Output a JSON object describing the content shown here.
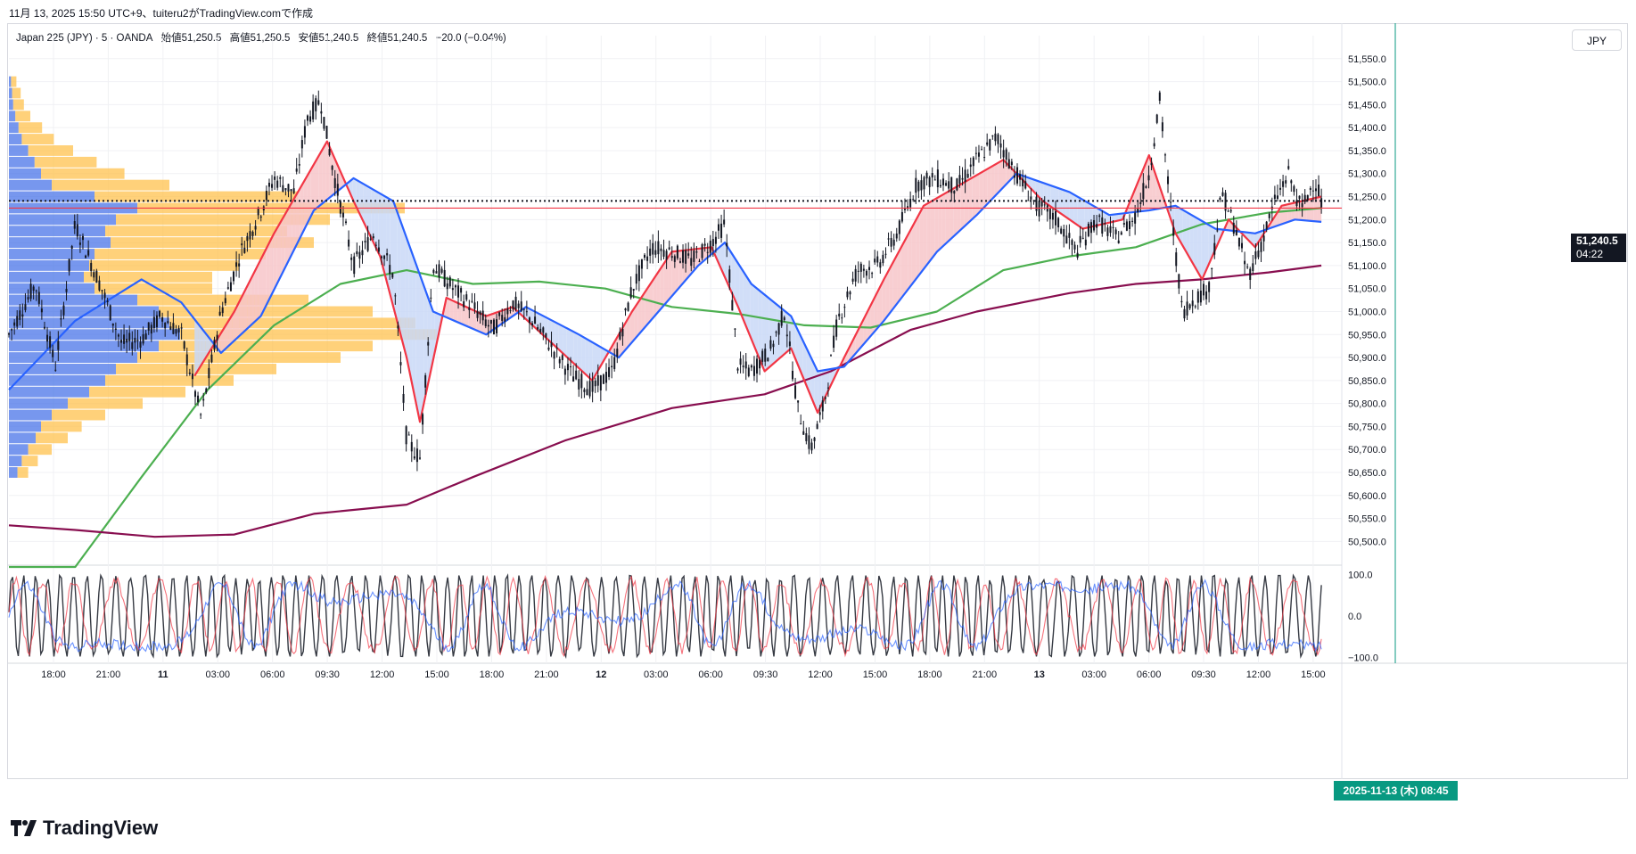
{
  "header": {
    "created_text": "11月 13, 2025 15:50 UTC+9、tuiteru2がTradingView.comで作成"
  },
  "legend": {
    "symbol": "Japan 225 (JPY) · 5 · OANDA",
    "open": "始値51,250.5",
    "high": "高値51,250.5",
    "low": "安値51,240.5",
    "close": "終値51,240.5",
    "change": "−20.0 (−0.04%)"
  },
  "currency_button": "JPY",
  "price_tag": {
    "price": "51,240.5",
    "countdown": "04:22"
  },
  "crosshair_time_label": "2025-11-13 (木)  08:45",
  "brand": {
    "name": "TradingView"
  },
  "colors": {
    "candle": "#131722",
    "ema_fast": "#f23645",
    "ema_mid": "#2962ff",
    "ma_green": "#4caf50",
    "ma_long": "#880e4f",
    "fill_up": "#f7c6c9",
    "fill_down": "#c9d8f7",
    "vp_up": "#ffc24d",
    "vp_down": "#4a74e8",
    "crosshair": "#089981",
    "current_line": "#f23645"
  },
  "chart_data": {
    "type": "line",
    "title": "",
    "price_axis": {
      "ylim": [
        50460,
        51600
      ],
      "ticks": [
        "51,550.0",
        "51,500.0",
        "51,450.0",
        "51,400.0",
        "51,350.0",
        "51,300.0",
        "51,250.0",
        "51,200.0",
        "51,150.0",
        "51,100.0",
        "51,050.0",
        "51,000.0",
        "50,950.0",
        "50,900.0",
        "50,850.0",
        "50,800.0",
        "50,750.0",
        "50,700.0",
        "50,650.0",
        "50,600.0",
        "50,550.0",
        "50,500.0"
      ]
    },
    "time_axis": {
      "labels": [
        "18:00",
        "21:00",
        "11",
        "03:00",
        "06:00",
        "09:30",
        "12:00",
        "15:00",
        "18:00",
        "21:00",
        "12",
        "03:00",
        "06:00",
        "09:30",
        "12:00",
        "15:00",
        "18:00",
        "21:00",
        "13",
        "03:00",
        "06:00",
        "09:30",
        "12:00",
        "15:00"
      ]
    },
    "current_price": 51240.5,
    "current_line_price": 51225,
    "price_path": [
      {
        "t": 0.0,
        "p": 50950
      },
      {
        "t": 0.02,
        "p": 51060
      },
      {
        "t": 0.035,
        "p": 50880
      },
      {
        "t": 0.05,
        "p": 51190
      },
      {
        "t": 0.07,
        "p": 51050
      },
      {
        "t": 0.085,
        "p": 50930
      },
      {
        "t": 0.1,
        "p": 50940
      },
      {
        "t": 0.115,
        "p": 50990
      },
      {
        "t": 0.13,
        "p": 50950
      },
      {
        "t": 0.145,
        "p": 50770
      },
      {
        "t": 0.16,
        "p": 51000
      },
      {
        "t": 0.175,
        "p": 51130
      },
      {
        "t": 0.19,
        "p": 51220
      },
      {
        "t": 0.2,
        "p": 51290
      },
      {
        "t": 0.215,
        "p": 51260
      },
      {
        "t": 0.225,
        "p": 51420
      },
      {
        "t": 0.235,
        "p": 51460
      },
      {
        "t": 0.245,
        "p": 51300
      },
      {
        "t": 0.26,
        "p": 51100
      },
      {
        "t": 0.275,
        "p": 51170
      },
      {
        "t": 0.29,
        "p": 51080
      },
      {
        "t": 0.3,
        "p": 50720
      },
      {
        "t": 0.31,
        "p": 50680
      },
      {
        "t": 0.32,
        "p": 51100
      },
      {
        "t": 0.335,
        "p": 51050
      },
      {
        "t": 0.35,
        "p": 51010
      },
      {
        "t": 0.365,
        "p": 50960
      },
      {
        "t": 0.38,
        "p": 51020
      },
      {
        "t": 0.395,
        "p": 50980
      },
      {
        "t": 0.41,
        "p": 50920
      },
      {
        "t": 0.425,
        "p": 50860
      },
      {
        "t": 0.44,
        "p": 50830
      },
      {
        "t": 0.455,
        "p": 50870
      },
      {
        "t": 0.47,
        "p": 51050
      },
      {
        "t": 0.485,
        "p": 51140
      },
      {
        "t": 0.5,
        "p": 51130
      },
      {
        "t": 0.515,
        "p": 51110
      },
      {
        "t": 0.53,
        "p": 51150
      },
      {
        "t": 0.54,
        "p": 51190
      },
      {
        "t": 0.55,
        "p": 50880
      },
      {
        "t": 0.56,
        "p": 50870
      },
      {
        "t": 0.575,
        "p": 50920
      },
      {
        "t": 0.585,
        "p": 51000
      },
      {
        "t": 0.595,
        "p": 50790
      },
      {
        "t": 0.605,
        "p": 50700
      },
      {
        "t": 0.615,
        "p": 50800
      },
      {
        "t": 0.625,
        "p": 50980
      },
      {
        "t": 0.64,
        "p": 51090
      },
      {
        "t": 0.655,
        "p": 51100
      },
      {
        "t": 0.67,
        "p": 51170
      },
      {
        "t": 0.685,
        "p": 51280
      },
      {
        "t": 0.7,
        "p": 51290
      },
      {
        "t": 0.715,
        "p": 51270
      },
      {
        "t": 0.73,
        "p": 51330
      },
      {
        "t": 0.745,
        "p": 51380
      },
      {
        "t": 0.76,
        "p": 51300
      },
      {
        "t": 0.775,
        "p": 51230
      },
      {
        "t": 0.79,
        "p": 51200
      },
      {
        "t": 0.805,
        "p": 51130
      },
      {
        "t": 0.82,
        "p": 51200
      },
      {
        "t": 0.835,
        "p": 51160
      },
      {
        "t": 0.85,
        "p": 51210
      },
      {
        "t": 0.86,
        "p": 51300
      },
      {
        "t": 0.868,
        "p": 51460
      },
      {
        "t": 0.875,
        "p": 51260
      },
      {
        "t": 0.885,
        "p": 51000
      },
      {
        "t": 0.895,
        "p": 51030
      },
      {
        "t": 0.905,
        "p": 51050
      },
      {
        "t": 0.915,
        "p": 51260
      },
      {
        "t": 0.925,
        "p": 51180
      },
      {
        "t": 0.935,
        "p": 51080
      },
      {
        "t": 0.945,
        "p": 51150
      },
      {
        "t": 0.955,
        "p": 51240
      },
      {
        "t": 0.965,
        "p": 51300
      },
      {
        "t": 0.975,
        "p": 51220
      },
      {
        "t": 0.985,
        "p": 51290
      },
      {
        "t": 0.99,
        "p": 51240
      }
    ],
    "series": [
      {
        "key": "ma_green",
        "points": [
          {
            "t": 0.0,
            "p": 50100
          },
          {
            "t": 0.05,
            "p": 50380
          },
          {
            "t": 0.1,
            "p": 50640
          },
          {
            "t": 0.15,
            "p": 50830
          },
          {
            "t": 0.2,
            "p": 50970
          },
          {
            "t": 0.25,
            "p": 51060
          },
          {
            "t": 0.3,
            "p": 51090
          },
          {
            "t": 0.35,
            "p": 51060
          },
          {
            "t": 0.4,
            "p": 51065
          },
          {
            "t": 0.45,
            "p": 51050
          },
          {
            "t": 0.5,
            "p": 51010
          },
          {
            "t": 0.55,
            "p": 50995
          },
          {
            "t": 0.6,
            "p": 50970
          },
          {
            "t": 0.65,
            "p": 50965
          },
          {
            "t": 0.7,
            "p": 51000
          },
          {
            "t": 0.75,
            "p": 51090
          },
          {
            "t": 0.8,
            "p": 51120
          },
          {
            "t": 0.85,
            "p": 51140
          },
          {
            "t": 0.9,
            "p": 51190
          },
          {
            "t": 0.95,
            "p": 51215
          },
          {
            "t": 0.99,
            "p": 51225
          }
        ]
      },
      {
        "key": "ma_long",
        "points": [
          {
            "t": 0.0,
            "p": 50535
          },
          {
            "t": 0.05,
            "p": 50525
          },
          {
            "t": 0.11,
            "p": 50510
          },
          {
            "t": 0.17,
            "p": 50515
          },
          {
            "t": 0.23,
            "p": 50560
          },
          {
            "t": 0.3,
            "p": 50580
          },
          {
            "t": 0.35,
            "p": 50640
          },
          {
            "t": 0.42,
            "p": 50720
          },
          {
            "t": 0.5,
            "p": 50790
          },
          {
            "t": 0.57,
            "p": 50820
          },
          {
            "t": 0.62,
            "p": 50870
          },
          {
            "t": 0.68,
            "p": 50960
          },
          {
            "t": 0.73,
            "p": 51000
          },
          {
            "t": 0.8,
            "p": 51040
          },
          {
            "t": 0.85,
            "p": 51060
          },
          {
            "t": 0.9,
            "p": 51070
          },
          {
            "t": 0.95,
            "p": 51085
          },
          {
            "t": 0.99,
            "p": 51100
          }
        ]
      },
      {
        "key": "ema_fast",
        "points": [
          {
            "t": 0.14,
            "p": 50860
          },
          {
            "t": 0.17,
            "p": 51000
          },
          {
            "t": 0.2,
            "p": 51170
          },
          {
            "t": 0.24,
            "p": 51370
          },
          {
            "t": 0.26,
            "p": 51240
          },
          {
            "t": 0.28,
            "p": 51120
          },
          {
            "t": 0.3,
            "p": 50900
          },
          {
            "t": 0.31,
            "p": 50760
          },
          {
            "t": 0.33,
            "p": 51030
          },
          {
            "t": 0.36,
            "p": 50990
          },
          {
            "t": 0.38,
            "p": 51010
          },
          {
            "t": 0.41,
            "p": 50930
          },
          {
            "t": 0.44,
            "p": 50850
          },
          {
            "t": 0.47,
            "p": 51000
          },
          {
            "t": 0.5,
            "p": 51130
          },
          {
            "t": 0.53,
            "p": 51140
          },
          {
            "t": 0.55,
            "p": 51010
          },
          {
            "t": 0.57,
            "p": 50870
          },
          {
            "t": 0.59,
            "p": 50920
          },
          {
            "t": 0.61,
            "p": 50780
          },
          {
            "t": 0.63,
            "p": 50900
          },
          {
            "t": 0.66,
            "p": 51070
          },
          {
            "t": 0.69,
            "p": 51230
          },
          {
            "t": 0.72,
            "p": 51280
          },
          {
            "t": 0.75,
            "p": 51330
          },
          {
            "t": 0.78,
            "p": 51240
          },
          {
            "t": 0.81,
            "p": 51180
          },
          {
            "t": 0.84,
            "p": 51200
          },
          {
            "t": 0.86,
            "p": 51340
          },
          {
            "t": 0.88,
            "p": 51170
          },
          {
            "t": 0.9,
            "p": 51070
          },
          {
            "t": 0.92,
            "p": 51200
          },
          {
            "t": 0.94,
            "p": 51140
          },
          {
            "t": 0.96,
            "p": 51230
          },
          {
            "t": 0.99,
            "p": 51250
          }
        ]
      },
      {
        "key": "ema_mid",
        "points": [
          {
            "t": 0.0,
            "p": 50830
          },
          {
            "t": 0.05,
            "p": 50980
          },
          {
            "t": 0.1,
            "p": 51070
          },
          {
            "t": 0.13,
            "p": 51020
          },
          {
            "t": 0.16,
            "p": 50910
          },
          {
            "t": 0.19,
            "p": 50990
          },
          {
            "t": 0.23,
            "p": 51220
          },
          {
            "t": 0.26,
            "p": 51290
          },
          {
            "t": 0.29,
            "p": 51240
          },
          {
            "t": 0.32,
            "p": 51000
          },
          {
            "t": 0.36,
            "p": 50950
          },
          {
            "t": 0.39,
            "p": 51010
          },
          {
            "t": 0.43,
            "p": 50950
          },
          {
            "t": 0.46,
            "p": 50900
          },
          {
            "t": 0.49,
            "p": 51000
          },
          {
            "t": 0.52,
            "p": 51100
          },
          {
            "t": 0.54,
            "p": 51150
          },
          {
            "t": 0.56,
            "p": 51060
          },
          {
            "t": 0.59,
            "p": 50990
          },
          {
            "t": 0.61,
            "p": 50870
          },
          {
            "t": 0.63,
            "p": 50880
          },
          {
            "t": 0.66,
            "p": 50980
          },
          {
            "t": 0.7,
            "p": 51130
          },
          {
            "t": 0.73,
            "p": 51210
          },
          {
            "t": 0.76,
            "p": 51300
          },
          {
            "t": 0.8,
            "p": 51260
          },
          {
            "t": 0.83,
            "p": 51210
          },
          {
            "t": 0.86,
            "p": 51220
          },
          {
            "t": 0.88,
            "p": 51230
          },
          {
            "t": 0.91,
            "p": 51180
          },
          {
            "t": 0.94,
            "p": 51170
          },
          {
            "t": 0.97,
            "p": 51200
          },
          {
            "t": 0.99,
            "p": 51195
          }
        ]
      }
    ],
    "oscillator": {
      "ylim": [
        -110,
        110
      ],
      "ticks": [
        "100.0",
        "0.0",
        "−100.0"
      ],
      "series": [
        {
          "key": "osc_black",
          "color": "#131722"
        },
        {
          "key": "osc_red",
          "color": "#f23645"
        },
        {
          "key": "osc_blue",
          "color": "#2962ff"
        }
      ]
    },
    "volume_profile": {
      "note": "",
      "levels": [
        {
          "p": 51500,
          "up": 5,
          "down": 2
        },
        {
          "p": 51475,
          "up": 8,
          "down": 3
        },
        {
          "p": 51450,
          "up": 10,
          "down": 4
        },
        {
          "p": 51425,
          "up": 14,
          "down": 6
        },
        {
          "p": 51400,
          "up": 22,
          "down": 9
        },
        {
          "p": 51375,
          "up": 30,
          "down": 12
        },
        {
          "p": 51350,
          "up": 42,
          "down": 18
        },
        {
          "p": 51325,
          "up": 58,
          "down": 24
        },
        {
          "p": 51300,
          "up": 78,
          "down": 30
        },
        {
          "p": 51275,
          "up": 110,
          "down": 40
        },
        {
          "p": 51250,
          "up": 190,
          "down": 80
        },
        {
          "p": 51225,
          "up": 250,
          "down": 120
        },
        {
          "p": 51200,
          "up": 200,
          "down": 100
        },
        {
          "p": 51175,
          "up": 170,
          "down": 90
        },
        {
          "p": 51150,
          "up": 190,
          "down": 95
        },
        {
          "p": 51125,
          "up": 160,
          "down": 80
        },
        {
          "p": 51100,
          "up": 140,
          "down": 75
        },
        {
          "p": 51075,
          "up": 120,
          "down": 70
        },
        {
          "p": 51050,
          "up": 110,
          "down": 80
        },
        {
          "p": 51025,
          "up": 160,
          "down": 120
        },
        {
          "p": 51000,
          "up": 200,
          "down": 140
        },
        {
          "p": 50975,
          "up": 230,
          "down": 150
        },
        {
          "p": 50950,
          "up": 240,
          "down": 160
        },
        {
          "p": 50925,
          "up": 200,
          "down": 140
        },
        {
          "p": 50900,
          "up": 190,
          "down": 120
        },
        {
          "p": 50875,
          "up": 150,
          "down": 100
        },
        {
          "p": 50850,
          "up": 120,
          "down": 90
        },
        {
          "p": 50825,
          "up": 90,
          "down": 75
        },
        {
          "p": 50800,
          "up": 70,
          "down": 55
        },
        {
          "p": 50775,
          "up": 50,
          "down": 40
        },
        {
          "p": 50750,
          "up": 38,
          "down": 30
        },
        {
          "p": 50725,
          "up": 30,
          "down": 25
        },
        {
          "p": 50700,
          "up": 22,
          "down": 18
        },
        {
          "p": 50675,
          "up": 15,
          "down": 12
        },
        {
          "p": 50650,
          "up": 10,
          "down": 8
        }
      ]
    }
  }
}
